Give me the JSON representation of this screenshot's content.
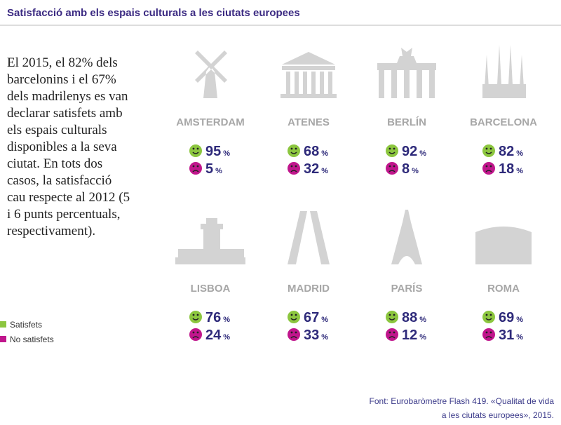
{
  "chart_data": {
    "type": "tiles",
    "title": "Satisfacció amb els espais culturals a les ciutats europees",
    "description": [
      "El 2015, el 82% dels",
      "barcelonins i el 67%",
      "dels madrilenys es van",
      "declarar satisfets amb",
      "els espais culturals",
      "disponibles a la seva",
      "ciutat. En tots dos",
      "casos, la satisfacció",
      "cau respecte al 2012 (5",
      "i 6 punts percentuals,",
      "respectivament)."
    ],
    "categories": [
      "AMSTERDAM",
      "ATENES",
      "BERLÍN",
      "BARCELONA",
      "LISBOA",
      "MADRID",
      "PARÍS",
      "ROMA"
    ],
    "unit": "%",
    "series": [
      {
        "name": "Satisfets",
        "color": "#8cc63f",
        "values": [
          95,
          68,
          92,
          82,
          76,
          67,
          88,
          69
        ]
      },
      {
        "name": "No satisfets",
        "color": "#c0168c",
        "values": [
          5,
          32,
          8,
          18,
          24,
          33,
          12,
          31
        ]
      }
    ],
    "source": [
      "Font: Eurobaròmetre Flash 419. «Qualitat de vida",
      "a les ciutats europees», 2015."
    ]
  }
}
